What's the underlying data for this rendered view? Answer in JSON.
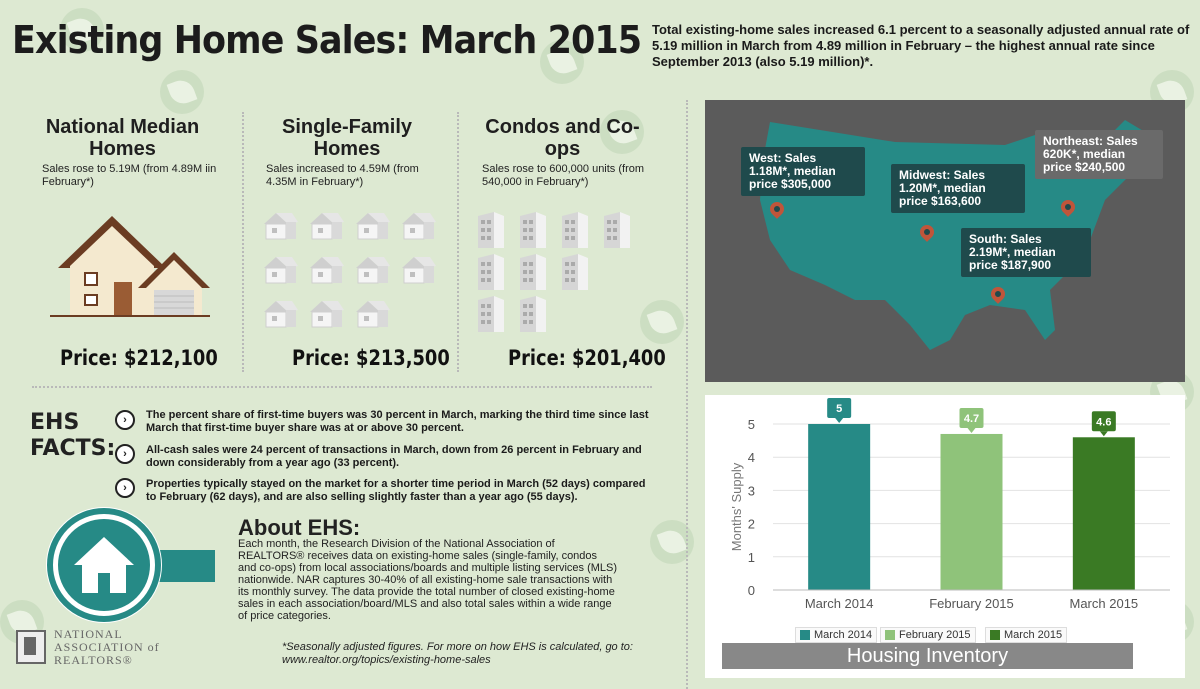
{
  "header": {
    "title": "Existing Home Sales: March 2015",
    "summary": "Total existing-home sales increased 6.1 percent to a seasonally adjusted annual rate of 5.19 million in March from 4.89 million in February – the highest annual rate since September 2013 (also 5.19 million)*."
  },
  "columns": [
    {
      "title": "National Median Homes",
      "note": "Sales rose to 5.19M (from 4.89M iin February*)",
      "price": "Price: $212,100"
    },
    {
      "title": "Single-Family Homes",
      "note": "Sales increased to 4.59M (from 4.35M in February*)",
      "price": "Price: $213,500"
    },
    {
      "title": "Condos and Co-ops",
      "note": "Sales rose to 600,000 units (from 540,000 in February*)",
      "price": "Price: $201,400"
    }
  ],
  "facts": {
    "heading_line1": "EHS",
    "heading_line2": "FACTS:",
    "items": [
      "The percent share of first-time buyers was 30 percent in March, marking the third time since last March that first-time buyer share was at or above 30 percent.",
      "All-cash sales were 24 percent of transactions in March, down from 26 percent in February and down considerably from a year ago (33 percent).",
      "Properties typically stayed on the market for a shorter time period in March (52 days) compared to February (62 days), and are also selling slightly faster than a year ago (55 days)."
    ]
  },
  "about": {
    "title": "About EHS:",
    "body": "Each month, the Research Division of the National Association of REALTORS® receives data on existing-home sales (single-family, condos and co-ops) from local associations/boards and multiple listing services (MLS) nationwide. NAR captures 30-40% of all existing-home sale transactions with its monthly survey. The data provide the total number of closed existing-home sales in each association/board/MLS and also total sales within a wide range of price categories."
  },
  "footnote": "*Seasonally adjusted figures. For more on how EHS is calculated, go to: www.realtor.org/topics/existing-home-sales",
  "logo": {
    "line1": "NATIONAL",
    "line2": "ASSOCIATION of",
    "line3": "REALTORS®"
  },
  "map": {
    "regions": [
      {
        "name": "West",
        "text": "West: Sales 1.18M*, median price $305,000",
        "style": "dark"
      },
      {
        "name": "Midwest",
        "text": "Midwest: Sales 1.20M*, median price $163,600",
        "style": "dark"
      },
      {
        "name": "Northeast",
        "text": "Northeast: Sales 620K*, median price $240,500",
        "style": "gray"
      },
      {
        "name": "South",
        "text": "South: Sales 2.19M*, median price $187,900",
        "style": "dark"
      }
    ]
  },
  "chart_data": {
    "type": "bar",
    "categories": [
      "March 2014",
      "February 2015",
      "March 2015"
    ],
    "values": [
      5,
      4.7,
      4.6
    ],
    "data_labels": [
      "5",
      "4.7",
      "4.6"
    ],
    "colors": [
      "#268a86",
      "#8fc37a",
      "#3a7a24"
    ],
    "ylabel": "Months' Supply",
    "ylim": [
      0,
      5
    ],
    "yticks": [
      "0",
      "1",
      "2",
      "3",
      "4",
      "5"
    ],
    "legend": [
      "March 2014",
      "February 2015",
      "March 2015"
    ],
    "legend_position": "bottom",
    "footer": "Housing Inventory"
  }
}
